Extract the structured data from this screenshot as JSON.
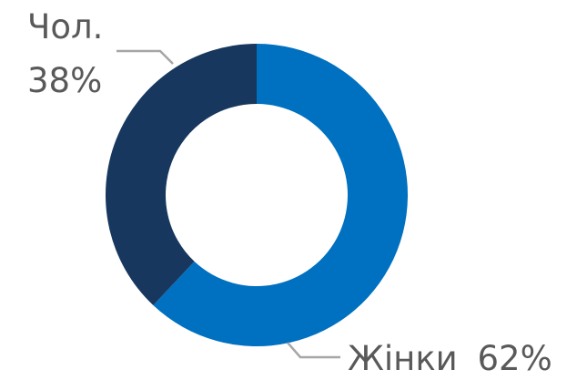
{
  "chart_data": {
    "type": "pie",
    "donut": true,
    "categories": [
      "Жінки",
      "Чол."
    ],
    "values": [
      62,
      38
    ],
    "labels": [
      {
        "name": "Жінки",
        "value": "62%"
      },
      {
        "name": "Чол.",
        "value": "38%"
      }
    ],
    "colors": [
      "#0070C0",
      "#17375E"
    ],
    "title": "",
    "legend": "none"
  }
}
